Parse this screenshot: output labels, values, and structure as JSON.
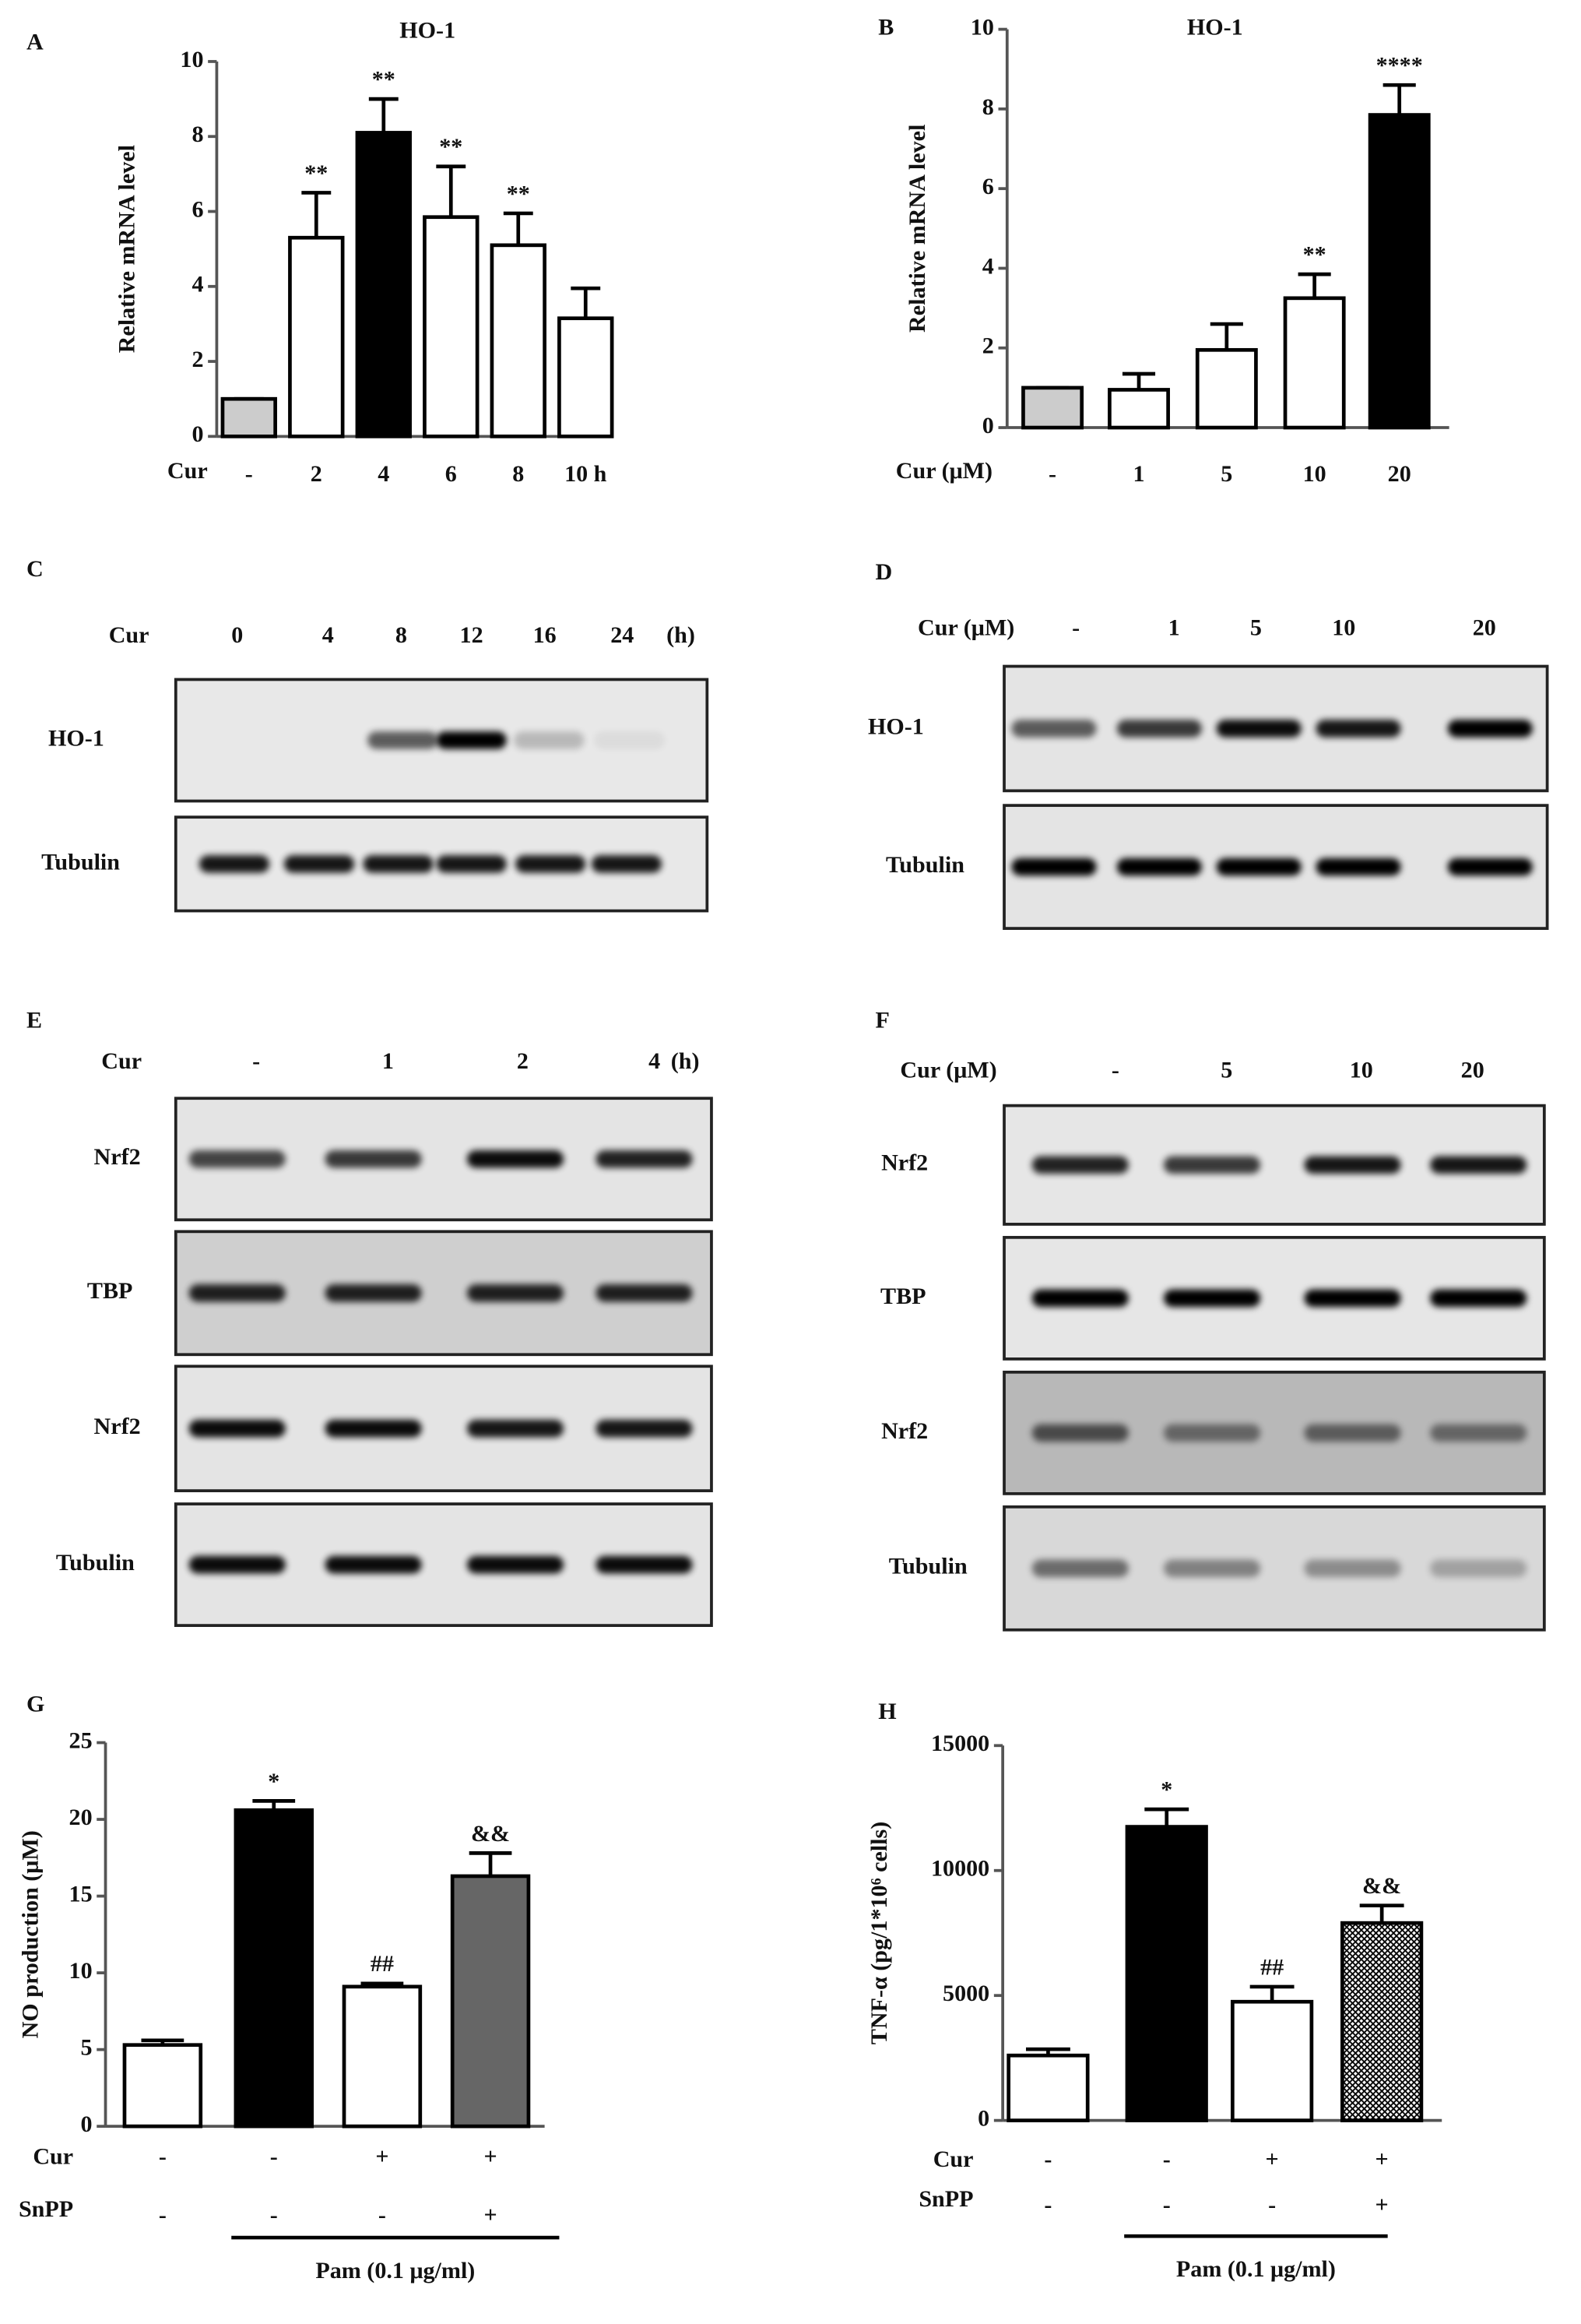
{
  "chart_data": [
    {
      "type": "bar",
      "panel": "A",
      "title": "HO-1",
      "ylabel": "Relative mRNA level",
      "xlabel": "Cur",
      "categories": [
        "-",
        "2",
        "4",
        "6",
        "8",
        "10 h"
      ],
      "values": [
        1,
        5.3,
        8.1,
        5.85,
        5.1,
        3.15
      ],
      "errors": [
        0,
        1.2,
        0.9,
        1.35,
        0.85,
        0.8
      ],
      "annotations": [
        null,
        "**",
        "**",
        "**",
        "**",
        null
      ],
      "colors": [
        "#cccccc",
        "#ffffff",
        "#000000",
        "#ffffff",
        "#ffffff",
        "#ffffff"
      ],
      "ylim": [
        0,
        10
      ],
      "yticks": [
        0,
        2,
        4,
        6,
        8,
        10
      ]
    },
    {
      "type": "bar",
      "panel": "B",
      "title": "HO-1",
      "ylabel": "Relative mRNA level",
      "xlabel": "Cur (μM)",
      "categories": [
        "-",
        "1",
        "5",
        "10",
        "20"
      ],
      "values": [
        1,
        0.95,
        1.95,
        3.25,
        7.85
      ],
      "errors": [
        0,
        0.4,
        0.65,
        0.6,
        0.75
      ],
      "annotations": [
        null,
        null,
        null,
        "**",
        "****"
      ],
      "colors": [
        "#cccccc",
        "#ffffff",
        "#ffffff",
        "#ffffff",
        "#000000"
      ],
      "ylim": [
        0,
        10
      ],
      "yticks": [
        0,
        2,
        4,
        6,
        8,
        10
      ]
    },
    {
      "type": "bar",
      "panel": "G",
      "ylabel": "NO production (μM)",
      "values": [
        5.3,
        20.6,
        9.1,
        16.3
      ],
      "errors": [
        0.3,
        0.6,
        0.2,
        1.5
      ],
      "annotations": [
        null,
        "*",
        "##",
        "&&"
      ],
      "colors": [
        "#ffffff",
        "#000000",
        "#ffffff",
        "#666666"
      ],
      "hatched": [
        false,
        false,
        false,
        false
      ],
      "rows": [
        {
          "label": "Cur",
          "values": [
            "-",
            "-",
            "+",
            "+"
          ]
        },
        {
          "label": "SnPP",
          "values": [
            "-",
            "-",
            "-",
            "+"
          ]
        }
      ],
      "bracket": "Pam (0.1 μg/ml)",
      "ylim": [
        0,
        25
      ],
      "yticks": [
        0,
        5,
        10,
        15,
        20,
        25
      ]
    },
    {
      "type": "bar",
      "panel": "H",
      "ylabel": "TNF-α (pg/1*10⁶ cells)",
      "values": [
        2600,
        11750,
        4750,
        7900
      ],
      "errors": [
        250,
        700,
        600,
        700
      ],
      "annotations": [
        null,
        "*",
        "##",
        "&&"
      ],
      "colors": [
        "#ffffff",
        "#000000",
        "#ffffff",
        "#ffffff"
      ],
      "hatched": [
        false,
        false,
        false,
        true
      ],
      "rows": [
        {
          "label": "Cur",
          "values": [
            "-",
            "-",
            "+",
            "+"
          ]
        },
        {
          "label": "SnPP",
          "values": [
            "-",
            "-",
            "-",
            "+"
          ]
        }
      ],
      "bracket": "Pam (0.1 μg/ml)",
      "ylim": [
        0,
        15000
      ],
      "yticks": [
        0,
        5000,
        10000,
        15000
      ]
    }
  ],
  "blots": [
    {
      "panel": "C",
      "treatment": "Cur",
      "lanes": [
        "0",
        "4",
        "8",
        "12",
        "16",
        "24"
      ],
      "unit": "(h)",
      "rows": [
        "HO-1",
        "Tubulin"
      ]
    },
    {
      "panel": "D",
      "treatment": "Cur (μM)",
      "lanes": [
        "-",
        "1",
        "5",
        "10",
        "20"
      ],
      "rows": [
        "HO-1",
        "Tubulin"
      ]
    },
    {
      "panel": "E",
      "treatment": "Cur",
      "lanes": [
        "-",
        "1",
        "2",
        "4"
      ],
      "unit": "(h)",
      "rows": [
        "Nrf2",
        "TBP",
        "Nrf2",
        "Tubulin"
      ]
    },
    {
      "panel": "F",
      "treatment": "Cur (μM)",
      "lanes": [
        "-",
        "5",
        "10",
        "20"
      ],
      "rows": [
        "Nrf2",
        "TBP",
        "Nrf2",
        "Tubulin"
      ]
    }
  ]
}
